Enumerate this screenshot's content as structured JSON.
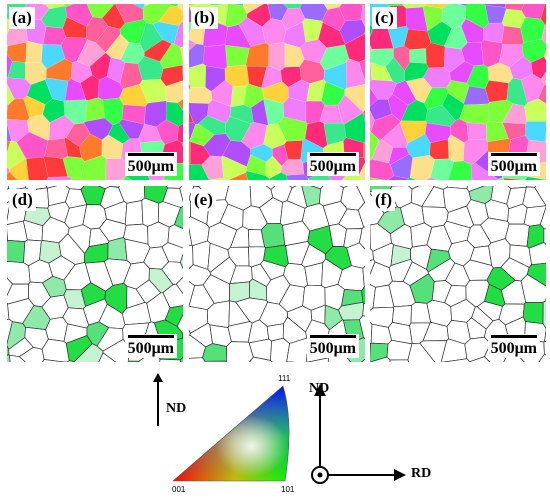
{
  "panels": [
    {
      "id": "a",
      "label": "(a)",
      "scale": "500μm",
      "kind": "ipf"
    },
    {
      "id": "b",
      "label": "(b)",
      "scale": "500μm",
      "kind": "ipf"
    },
    {
      "id": "c",
      "label": "(c)",
      "scale": "500μm",
      "kind": "ipf"
    },
    {
      "id": "d",
      "label": "(d)",
      "scale": "500μm",
      "kind": "boundary",
      "green_fraction": 0.24
    },
    {
      "id": "e",
      "label": "(e)",
      "scale": "500μm",
      "kind": "boundary",
      "green_fraction": 0.12
    },
    {
      "id": "f",
      "label": "(f)",
      "scale": "500μm",
      "kind": "boundary",
      "green_fraction": 0.08
    }
  ],
  "legend": {
    "nd_arrow_label": "ND",
    "corner_111": "111",
    "corner_001": "001",
    "corner_101": "101"
  },
  "axes": {
    "nd_label": "ND",
    "rd_label": "RD"
  },
  "colors": {
    "boundary": "#333333",
    "texture_green": [
      "#22dd44",
      "#55e07a",
      "#8fe9a8",
      "#c5f3d2"
    ]
  }
}
